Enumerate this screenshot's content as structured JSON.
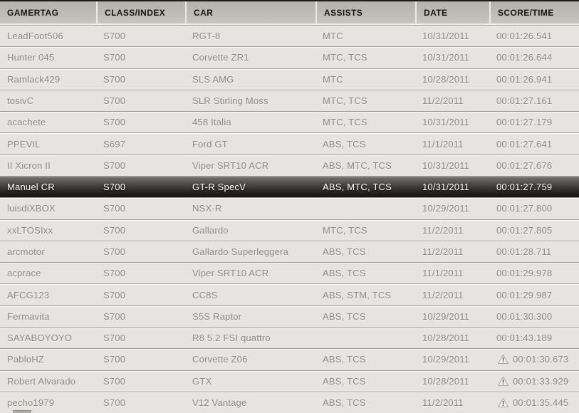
{
  "table": {
    "columns": [
      {
        "key": "gamertag",
        "label": "GAMERTAG"
      },
      {
        "key": "class_index",
        "label": "CLASS/INDEX"
      },
      {
        "key": "car",
        "label": "CAR"
      },
      {
        "key": "assists",
        "label": "ASSISTS"
      },
      {
        "key": "date",
        "label": "DATE"
      },
      {
        "key": "score_time",
        "label": "SCORE/TIME"
      }
    ],
    "rows": [
      {
        "gamertag": "LeadFoot506",
        "class_index": "S700",
        "car": "RGT-8",
        "assists": "MTC",
        "date": "10/31/2011",
        "score_time": "00:01:26.541",
        "dirty_lap": false,
        "highlighted": false
      },
      {
        "gamertag": "Hunter 045",
        "class_index": "S700",
        "car": "Corvette ZR1",
        "assists": "MTC, TCS",
        "date": "10/31/2011",
        "score_time": "00:01:26.644",
        "dirty_lap": false,
        "highlighted": false
      },
      {
        "gamertag": "Ramlack429",
        "class_index": "S700",
        "car": "SLS AMG",
        "assists": "MTC",
        "date": "10/28/2011",
        "score_time": "00:01:26.941",
        "dirty_lap": false,
        "highlighted": false
      },
      {
        "gamertag": "tosivC",
        "class_index": "S700",
        "car": "SLR Stirling Moss",
        "assists": "MTC, TCS",
        "date": "11/2/2011",
        "score_time": "00:01:27.161",
        "dirty_lap": false,
        "highlighted": false
      },
      {
        "gamertag": "acachete",
        "class_index": "S700",
        "car": "458 Italia",
        "assists": "MTC, TCS",
        "date": "10/31/2011",
        "score_time": "00:01:27.179",
        "dirty_lap": false,
        "highlighted": false
      },
      {
        "gamertag": "PPEVIL",
        "class_index": "S697",
        "car": "Ford GT",
        "assists": "ABS, TCS",
        "date": "11/1/2011",
        "score_time": "00:01:27.641",
        "dirty_lap": false,
        "highlighted": false
      },
      {
        "gamertag": "II Xicron II",
        "class_index": "S700",
        "car": "Viper SRT10 ACR",
        "assists": "ABS, MTC, TCS",
        "date": "10/31/2011",
        "score_time": "00:01:27.676",
        "dirty_lap": false,
        "highlighted": false
      },
      {
        "gamertag": "Manuel CR",
        "class_index": "S700",
        "car": "GT-R SpecV",
        "assists": "ABS, MTC, TCS",
        "date": "10/31/2011",
        "score_time": "00:01:27.759",
        "dirty_lap": false,
        "highlighted": true
      },
      {
        "gamertag": "luisdiXBOX",
        "class_index": "S700",
        "car": "NSX-R",
        "assists": "",
        "date": "10/29/2011",
        "score_time": "00:01:27.800",
        "dirty_lap": false,
        "highlighted": false
      },
      {
        "gamertag": "xxLTOSIxx",
        "class_index": "S700",
        "car": "Gallardo",
        "assists": "MTC, TCS",
        "date": "11/2/2011",
        "score_time": "00:01:27.805",
        "dirty_lap": false,
        "highlighted": false
      },
      {
        "gamertag": "arcmotor",
        "class_index": "S700",
        "car": "Gallardo Superleggera",
        "assists": "ABS, TCS",
        "date": "11/2/2011",
        "score_time": "00:01:28.711",
        "dirty_lap": false,
        "highlighted": false
      },
      {
        "gamertag": "acprace",
        "class_index": "S700",
        "car": "Viper SRT10 ACR",
        "assists": "ABS, TCS",
        "date": "11/1/2011",
        "score_time": "00:01:29.978",
        "dirty_lap": false,
        "highlighted": false
      },
      {
        "gamertag": "AFCG123",
        "class_index": "S700",
        "car": "CC8S",
        "assists": "ABS, STM, TCS",
        "date": "11/2/2011",
        "score_time": "00:01:29.987",
        "dirty_lap": false,
        "highlighted": false
      },
      {
        "gamertag": "Fermavita",
        "class_index": "S700",
        "car": "S5S Raptor",
        "assists": "ABS, TCS",
        "date": "10/29/2011",
        "score_time": "00:01:30.300",
        "dirty_lap": false,
        "highlighted": false
      },
      {
        "gamertag": "SAYABOYOYO",
        "class_index": "S700",
        "car": "R8 5.2 FSI quattro",
        "assists": "",
        "date": "10/28/2011",
        "score_time": "00:01:43.189",
        "dirty_lap": false,
        "highlighted": false
      },
      {
        "gamertag": "PabloHZ",
        "class_index": "S700",
        "car": "Corvette Z06",
        "assists": "ABS, TCS",
        "date": "10/29/2011",
        "score_time": "00:01:30.673",
        "dirty_lap": true,
        "highlighted": false
      },
      {
        "gamertag": "Robert Alvarado",
        "class_index": "S700",
        "car": "GTX",
        "assists": "ABS, TCS",
        "date": "10/28/2011",
        "score_time": "00:01:33.929",
        "dirty_lap": true,
        "highlighted": false
      },
      {
        "gamertag": "pecho1979",
        "class_index": "S700",
        "car": "V12 Vantage",
        "assists": "ABS, TCS",
        "date": "11/2/2011",
        "score_time": "00:01:35.445",
        "dirty_lap": true,
        "highlighted": false
      }
    ],
    "selected_gamertag": "Manuel CR"
  },
  "icons": {
    "dirty_lap": "warning-triangle-exclamation"
  },
  "colors": {
    "header_bg_top": "#b4b1ac",
    "header_bg_bottom": "#c9c6c1",
    "header_text": "#151514",
    "row_text": "#8b8885",
    "row_bg_light": "#edecea",
    "row_bg_dark": "#dcdad7",
    "row_divider": "#9b9894",
    "selected_bg_top": "#757472",
    "selected_bg_bottom": "#121211",
    "selected_text": "#fdfdfd",
    "warning_icon_fill": "#f2f1ee"
  }
}
